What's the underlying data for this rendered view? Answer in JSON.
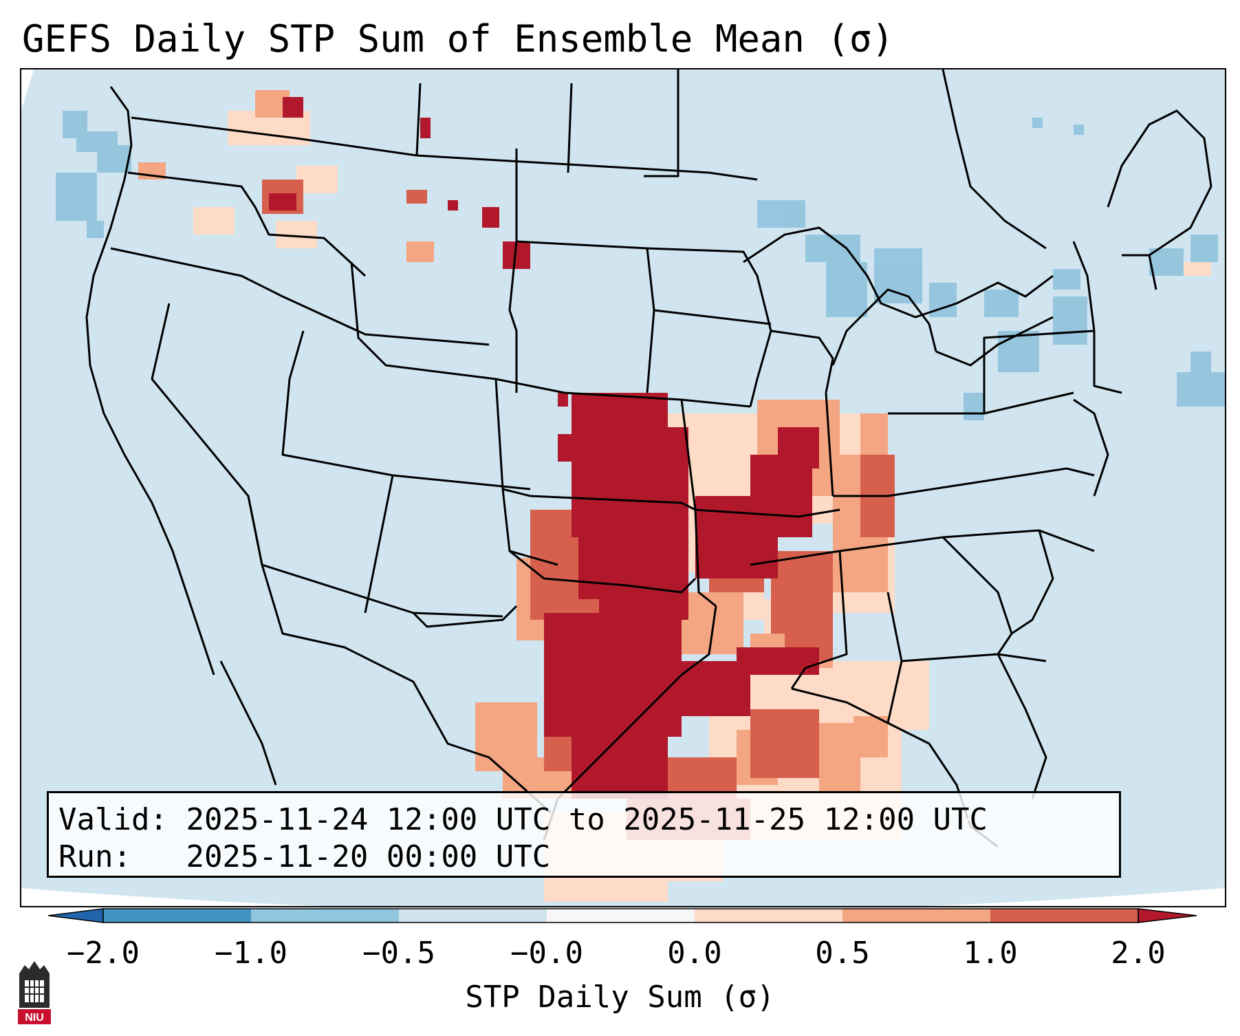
{
  "title": "GEFS Daily STP Sum of Ensemble Mean (σ)",
  "info": {
    "valid_label": "Valid:",
    "valid_value": "2025-11-24 12:00 UTC to 2025-11-25 12:00 UTC",
    "run_label": "Run:",
    "run_value": "2025-11-20 00:00 UTC"
  },
  "colorbar": {
    "label": "STP Daily Sum (σ)",
    "ticks": [
      "−2.0",
      "−1.0",
      "−0.5",
      "−0.0",
      "0.0",
      "0.5",
      "1.0",
      "2.0"
    ],
    "bins": [
      {
        "range": "< -2.0",
        "color": "#2166ac"
      },
      {
        "range": "-2.0 to -1.0",
        "color": "#4393c3"
      },
      {
        "range": "-1.0 to -0.5",
        "color": "#92c5de"
      },
      {
        "range": "-0.5 to -0.0",
        "color": "#d1e5f0"
      },
      {
        "range": "-0.0 to 0.0",
        "color": "#f7f7f7"
      },
      {
        "range": "0.0 to 0.5",
        "color": "#fddbc7"
      },
      {
        "range": "0.5 to 1.0",
        "color": "#f4a582"
      },
      {
        "range": "1.0 to 2.0",
        "color": "#d6604d"
      },
      {
        "range": "> 2.0",
        "color": "#b2182b"
      }
    ]
  },
  "map": {
    "region": "Contiguous United States",
    "max_anomaly_region": "Southern Plains / Mid-South (TX, OK, KS, MO, AR)",
    "background_color": "#d1e5f0"
  },
  "logo": {
    "text": "NIU"
  }
}
